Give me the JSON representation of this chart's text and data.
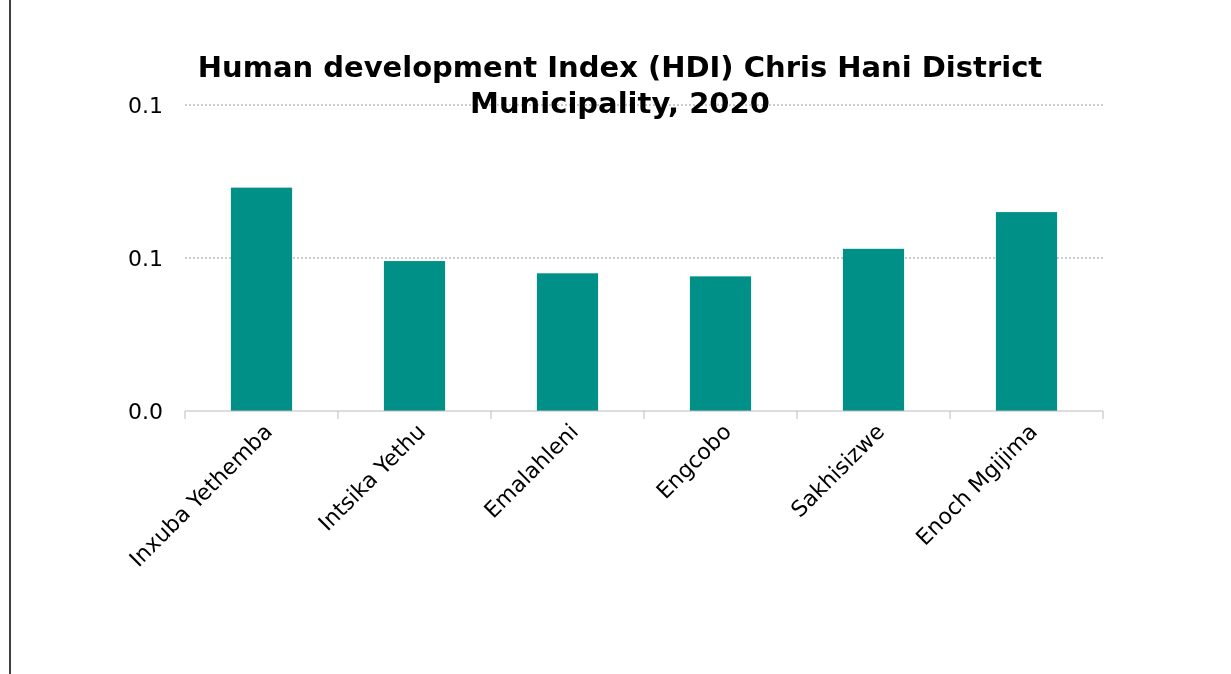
{
  "chart_data": {
    "type": "bar",
    "title": "Human development Index (HDI) Chris Hani District Municipality, 2020",
    "categories": [
      "Inxuba Yethemba",
      "Intsika Yethu",
      "Emalahleni",
      "Engcobo",
      "Sakhisizwe",
      "Enoch Mgijima"
    ],
    "values": [
      0.073,
      0.049,
      0.045,
      0.044,
      0.053,
      0.065
    ],
    "color": "#009088",
    "ylim": [
      0,
      0.1
    ],
    "yticks": [
      {
        "value": 0,
        "label": "0.0"
      },
      {
        "value": 0.05,
        "label": "0.1"
      },
      {
        "value": 0.1,
        "label": "0.1"
      }
    ],
    "grid": "y"
  }
}
